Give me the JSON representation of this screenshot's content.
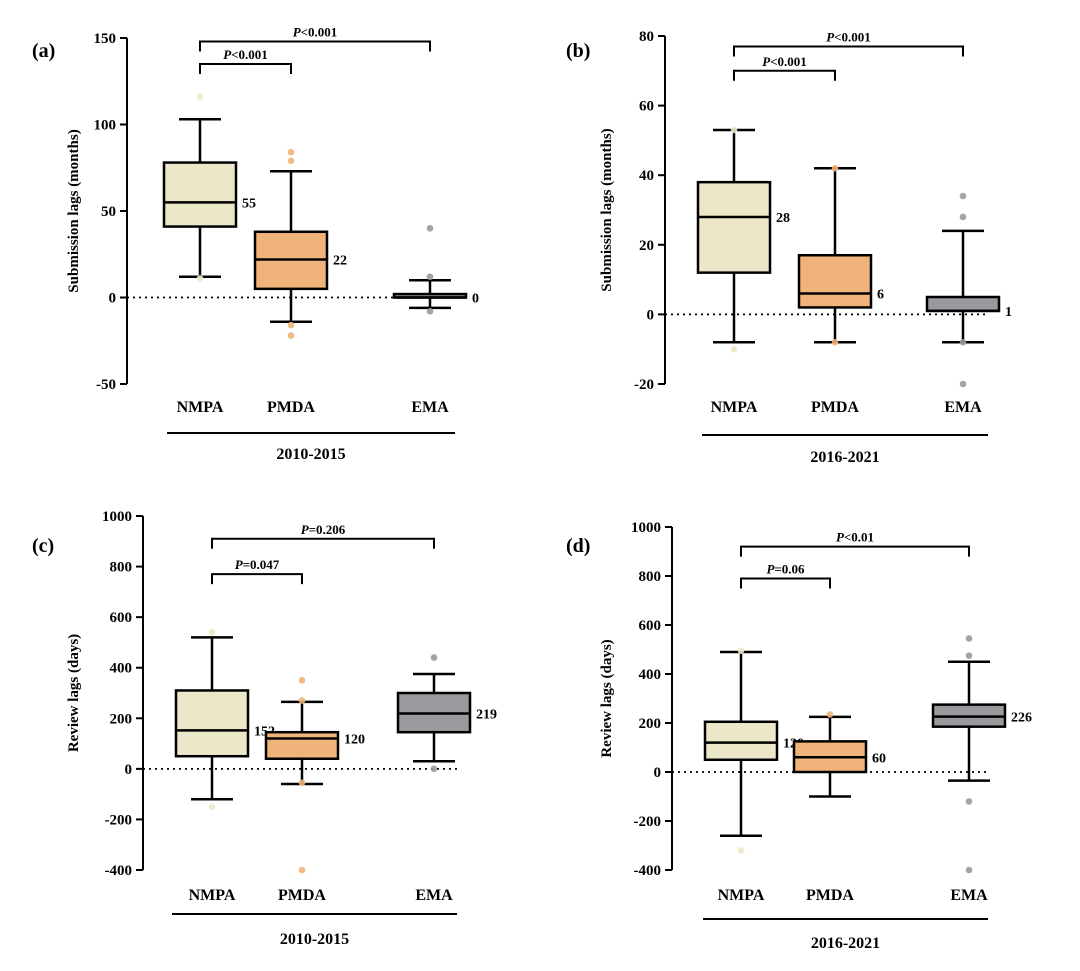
{
  "figure": {
    "background": "#ffffff"
  },
  "chart_data": [
    {
      "type": "box",
      "panel_label": "(a)",
      "ylabel": "Submission lags (months)",
      "period_label": "2010-2015",
      "categories": [
        "NMPA",
        "PMDA",
        "EMA"
      ],
      "ylim": [
        -50,
        150
      ],
      "yticks": [
        -50,
        0,
        50,
        100,
        150
      ],
      "reference_line": 0,
      "boxes": [
        {
          "category": "NMPA",
          "whisker_low": 12,
          "q1": 41,
          "median": 55,
          "q3": 78,
          "whisker_high": 103,
          "median_label": "55",
          "color": "#ede7c9",
          "outliers": [
            11,
            116
          ]
        },
        {
          "category": "PMDA",
          "whisker_low": -14,
          "q1": 5,
          "median": 22,
          "q3": 38,
          "whisker_high": 73,
          "median_label": "22",
          "color": "#f0b47a",
          "outliers": [
            -16,
            -22,
            79,
            84
          ]
        },
        {
          "category": "EMA",
          "whisker_low": -6,
          "q1": 0,
          "median": 0,
          "q3": 2,
          "whisker_high": 10,
          "median_label": "0",
          "color": "#9a9a9e",
          "outliers": [
            -8,
            12,
            40
          ]
        }
      ],
      "comparisons": [
        {
          "from": "NMPA",
          "to": "PMDA",
          "p_text": "<0.001",
          "y": 135
        },
        {
          "from": "NMPA",
          "to": "EMA",
          "p_text": "<0.001",
          "y": 148
        }
      ]
    },
    {
      "type": "box",
      "panel_label": "(b)",
      "ylabel": "Submission lags (months)",
      "period_label": "2016-2021",
      "categories": [
        "NMPA",
        "PMDA",
        "EMA"
      ],
      "ylim": [
        -20,
        80
      ],
      "yticks": [
        -20,
        0,
        20,
        40,
        60,
        80
      ],
      "reference_line": 0,
      "boxes": [
        {
          "category": "NMPA",
          "whisker_low": -8,
          "q1": 12,
          "median": 28,
          "q3": 38,
          "whisker_high": 53,
          "median_label": "28",
          "color": "#ede7c9",
          "outliers": [
            -10,
            53
          ]
        },
        {
          "category": "PMDA",
          "whisker_low": -8,
          "q1": 2,
          "median": 6,
          "q3": 17,
          "whisker_high": 42,
          "median_label": "6",
          "color": "#f0b47a",
          "outliers": [
            -8,
            42
          ]
        },
        {
          "category": "EMA",
          "whisker_low": -8,
          "q1": 1,
          "median": 1,
          "q3": 5,
          "whisker_high": 24,
          "median_label": "1",
          "color": "#9a9a9e",
          "outliers": [
            -8,
            -20,
            28,
            34
          ]
        }
      ],
      "comparisons": [
        {
          "from": "NMPA",
          "to": "PMDA",
          "p_text": "<0.001",
          "y": 70
        },
        {
          "from": "NMPA",
          "to": "EMA",
          "p_text": "<0.001",
          "y": 77
        }
      ]
    },
    {
      "type": "box",
      "panel_label": "(c)",
      "ylabel": "Review lags (days)",
      "period_label": "2010-2015",
      "categories": [
        "NMPA",
        "PMDA",
        "EMA"
      ],
      "ylim": [
        -400,
        1000
      ],
      "yticks": [
        -400,
        -200,
        0,
        200,
        400,
        600,
        800,
        1000
      ],
      "reference_line": 0,
      "boxes": [
        {
          "category": "NMPA",
          "whisker_low": -120,
          "q1": 50,
          "median": 152,
          "q3": 310,
          "whisker_high": 520,
          "median_label": "152",
          "color": "#ede7c9",
          "outliers": [
            -150,
            540
          ]
        },
        {
          "category": "PMDA",
          "whisker_low": -60,
          "q1": 40,
          "median": 120,
          "q3": 145,
          "whisker_high": 265,
          "median_label": "120",
          "color": "#f0b47a",
          "outliers": [
            -400,
            -55,
            350,
            270
          ]
        },
        {
          "category": "EMA",
          "whisker_low": 30,
          "q1": 145,
          "median": 219,
          "q3": 300,
          "whisker_high": 375,
          "median_label": "219",
          "color": "#9a9a9e",
          "outliers": [
            0,
            440
          ]
        }
      ],
      "comparisons": [
        {
          "from": "NMPA",
          "to": "PMDA",
          "p_text": "=0.047",
          "y": 770
        },
        {
          "from": "NMPA",
          "to": "EMA",
          "p_text": "=0.206",
          "y": 910
        }
      ]
    },
    {
      "type": "box",
      "panel_label": "(d)",
      "ylabel": "Review lags (days)",
      "period_label": "2016-2021",
      "categories": [
        "NMPA",
        "PMDA",
        "EMA"
      ],
      "ylim": [
        -400,
        1000
      ],
      "yticks": [
        -400,
        -200,
        0,
        200,
        400,
        600,
        800,
        1000
      ],
      "reference_line": 0,
      "boxes": [
        {
          "category": "NMPA",
          "whisker_low": -260,
          "q1": 50,
          "median": 120,
          "q3": 205,
          "whisker_high": 490,
          "median_label": "120",
          "color": "#ede7c9",
          "outliers": [
            -320,
            495
          ]
        },
        {
          "category": "PMDA",
          "whisker_low": -100,
          "q1": 0,
          "median": 60,
          "q3": 125,
          "whisker_high": 225,
          "median_label": "60",
          "color": "#f0b47a",
          "outliers": [
            235
          ]
        },
        {
          "category": "EMA",
          "whisker_low": -35,
          "q1": 185,
          "median": 226,
          "q3": 275,
          "whisker_high": 450,
          "median_label": "226",
          "color": "#9a9a9e",
          "outliers": [
            -120,
            -400,
            475,
            545
          ]
        }
      ],
      "comparisons": [
        {
          "from": "NMPA",
          "to": "PMDA",
          "p_text": "=0.06",
          "y": 790
        },
        {
          "from": "NMPA",
          "to": "EMA",
          "p_text": "<0.01",
          "y": 920
        }
      ]
    }
  ]
}
